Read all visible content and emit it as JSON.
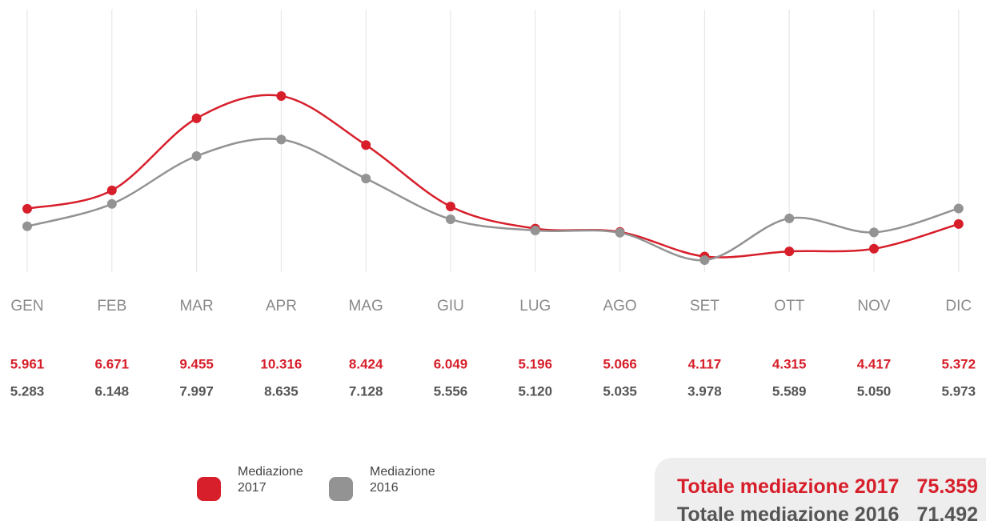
{
  "chart_data": {
    "type": "line",
    "categories": [
      "GEN",
      "FEB",
      "MAR",
      "APR",
      "MAG",
      "GIU",
      "LUG",
      "AGO",
      "SET",
      "OTT",
      "NOV",
      "DIC"
    ],
    "series": [
      {
        "name": "Mediazione 2017",
        "color": "#d71f2b",
        "values": [
          5961,
          6671,
          9455,
          10316,
          8424,
          6049,
          5196,
          5066,
          4117,
          4315,
          4417,
          5372
        ],
        "value_labels": [
          "5.961",
          "6.671",
          "9.455",
          "10.316",
          "8.424",
          "6.049",
          "5.196",
          "5.066",
          "4.117",
          "4.315",
          "4.417",
          "5.372"
        ]
      },
      {
        "name": "Mediazione 2016",
        "color": "#939393",
        "values": [
          5283,
          6148,
          7997,
          8635,
          7128,
          5556,
          5120,
          5035,
          3978,
          5589,
          5050,
          5973
        ],
        "value_labels": [
          "5.283",
          "6.148",
          "7.997",
          "8.635",
          "7.128",
          "5.556",
          "5.120",
          "5.035",
          "3.978",
          "5.589",
          "5.050",
          "5.973"
        ]
      }
    ],
    "grid": true,
    "totals": [
      {
        "label": "Totale mediazione 2017",
        "value": 75359,
        "value_label": "75.359",
        "color": "#d71f2b"
      },
      {
        "label": "Totale mediazione 2016",
        "value": 71492,
        "value_label": "71.492",
        "color": "#555555"
      }
    ]
  }
}
